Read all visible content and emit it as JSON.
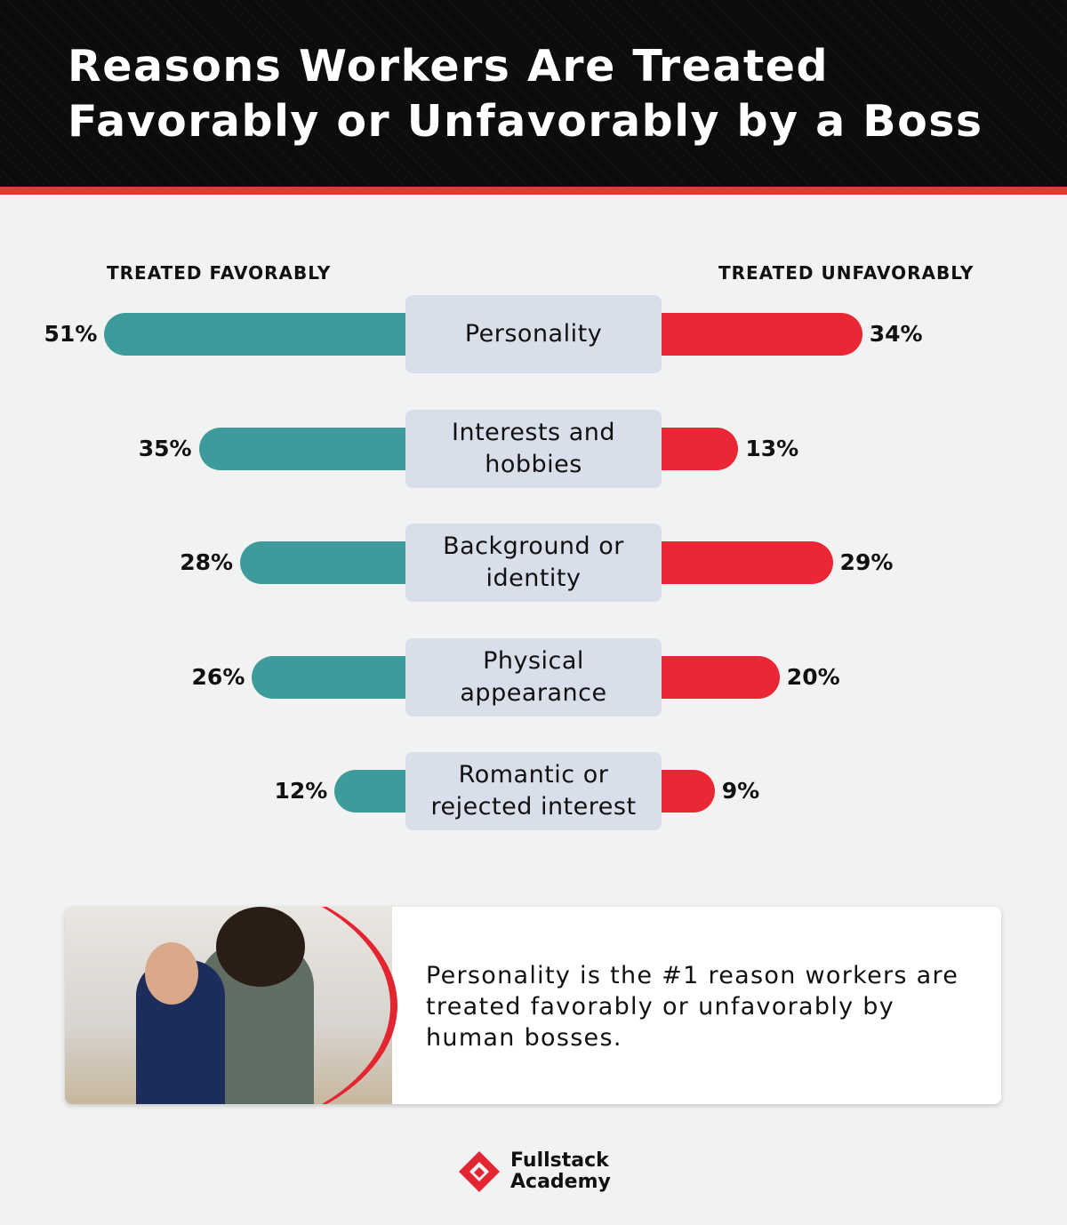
{
  "header": {
    "title_line1": "Reasons Workers Are Treated",
    "title_line2": "Favorably or Unfavorably by a Boss"
  },
  "columns": {
    "left": "TREATED FAVORABLY",
    "right": "TREATED UNFAVORABLY"
  },
  "colors": {
    "favorable": "#3e9b9b",
    "unfavorable": "#ea2735",
    "label_bg": "#d8deea",
    "accent": "#e03a33"
  },
  "rows": [
    {
      "label": "Personality",
      "fav": "51%",
      "unfav": "34%"
    },
    {
      "label": "Interests and hobbies",
      "fav": "35%",
      "unfav": "13%"
    },
    {
      "label": "Background or identity",
      "fav": "28%",
      "unfav": "29%"
    },
    {
      "label": "Physical appearance",
      "fav": "26%",
      "unfav": "20%"
    },
    {
      "label": "Romantic or rejected interest",
      "fav": "12%",
      "unfav": "9%"
    }
  ],
  "callout": {
    "text": "Personality is the #1 reason workers are treated favorably or unfavorably by human bosses."
  },
  "logo": {
    "line1": "Fullstack",
    "line2": "Academy"
  },
  "chart_data": {
    "type": "bar",
    "title": "Reasons Workers Are Treated Favorably or Unfavorably by a Boss",
    "categories": [
      "Personality",
      "Interests and hobbies",
      "Background or identity",
      "Physical appearance",
      "Romantic or rejected interest"
    ],
    "series": [
      {
        "name": "Treated Favorably",
        "values": [
          51,
          35,
          28,
          26,
          12
        ]
      },
      {
        "name": "Treated Unfavorably",
        "values": [
          34,
          13,
          29,
          20,
          9
        ]
      }
    ],
    "xlabel": "",
    "ylabel": "",
    "unit": "%",
    "layout": "diverging horizontal bars, favorable left, unfavorable right"
  }
}
